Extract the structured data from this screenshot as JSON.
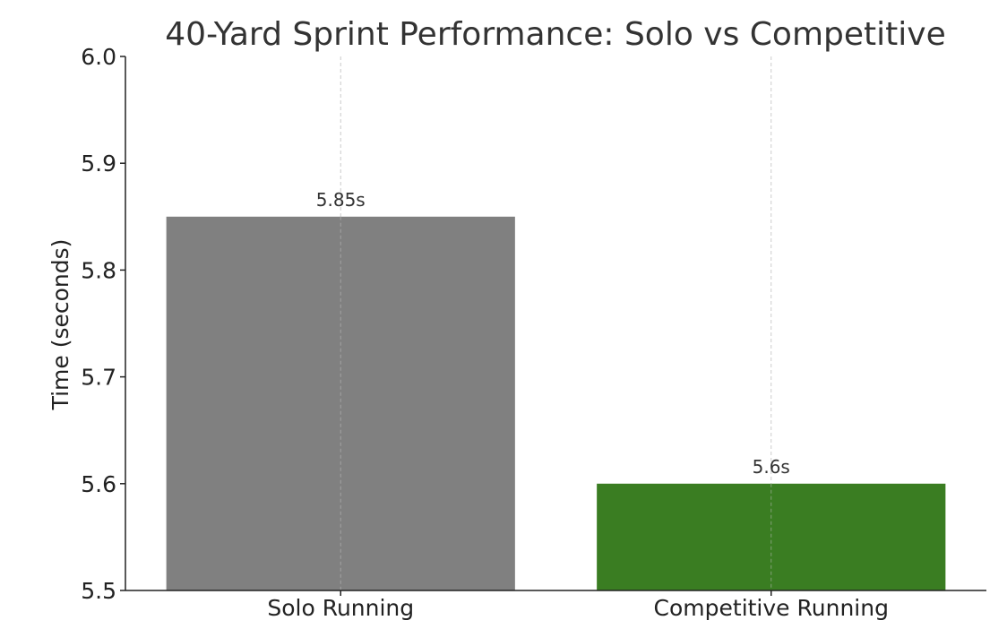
{
  "chart_data": {
    "type": "bar",
    "title": "40-Yard Sprint Performance: Solo vs Competitive",
    "xlabel": "",
    "ylabel": "Time (seconds)",
    "categories": [
      "Solo Running",
      "Competitive Running"
    ],
    "values": [
      5.85,
      5.6
    ],
    "data_labels": [
      "5.85s",
      "5.6s"
    ],
    "bar_colors": [
      "#808080",
      "#3a7d22"
    ],
    "ylim": [
      5.5,
      6.0
    ],
    "yticks": [
      5.5,
      5.6,
      5.7,
      5.8,
      5.9,
      6.0
    ],
    "ytick_labels": [
      "5.5",
      "5.6",
      "5.7",
      "5.8",
      "5.9",
      "6.0"
    ],
    "grid": "x-dashed",
    "legend": "none"
  }
}
